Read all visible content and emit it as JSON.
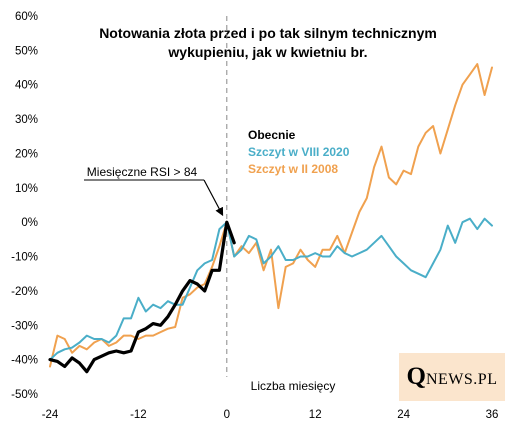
{
  "chart_data": {
    "type": "line",
    "title_lines": [
      "Notowania złota przed i po tak silnym technicznym",
      "wykupieniu, jak w kwietniu br."
    ],
    "xlabel": "Liczba miesięcy",
    "ylabel": "",
    "xlim": [
      -24,
      36
    ],
    "ylim": [
      -50,
      60
    ],
    "x_ticks": [
      -24,
      -12,
      0,
      12,
      24,
      36
    ],
    "y_ticks": [
      -50,
      -40,
      -30,
      -20,
      -10,
      0,
      10,
      20,
      30,
      40,
      50,
      60
    ],
    "y_tick_labels": [
      "-50%",
      "-40%",
      "-30%",
      "-20%",
      "-10%",
      "0%",
      "10%",
      "20%",
      "30%",
      "40%",
      "50%",
      "60%"
    ],
    "grid": false,
    "legend_position": "middle",
    "annotation": {
      "text": "Miesięczne RSI > 84",
      "x": 0,
      "y": 0
    },
    "vline_x": 0,
    "series": [
      {
        "name": "Obecnie",
        "color": "#000000",
        "x": [
          -24,
          -23,
          -22,
          -21,
          -20,
          -19,
          -18,
          -17,
          -16,
          -15,
          -14,
          -13,
          -12,
          -11,
          -10,
          -9,
          -8,
          -7,
          -6,
          -5,
          -4,
          -3,
          -2,
          -1,
          0,
          1
        ],
        "y": [
          -40,
          -40.5,
          -42,
          -39.5,
          -41,
          -43.5,
          -40,
          -39,
          -38,
          -37.5,
          -38,
          -37.5,
          -32,
          -31,
          -29.5,
          -30,
          -27.5,
          -24,
          -20,
          -17,
          -18,
          -20,
          -14,
          -14,
          0,
          -6
        ]
      },
      {
        "name": "Szczyt w VIII 2020",
        "color": "#4aaec8",
        "x": [
          -24,
          -23,
          -22,
          -21,
          -20,
          -19,
          -18,
          -17,
          -16,
          -15,
          -14,
          -13,
          -12,
          -11,
          -10,
          -9,
          -8,
          -7,
          -6,
          -5,
          -4,
          -3,
          -2,
          -1,
          0,
          1,
          2,
          3,
          4,
          5,
          6,
          7,
          8,
          9,
          10,
          11,
          12,
          13,
          14,
          15,
          16,
          17,
          18,
          19,
          20,
          21,
          22,
          23,
          24,
          25,
          26,
          27,
          28,
          29,
          30,
          31,
          32,
          33,
          34,
          35,
          36
        ],
        "y": [
          -40,
          -38,
          -37,
          -36.5,
          -35,
          -33,
          -34,
          -34,
          -35,
          -33,
          -28,
          -28,
          -22,
          -26,
          -24,
          -25,
          -23,
          -24,
          -24,
          -19,
          -14,
          -12,
          -11,
          -2,
          0,
          -10,
          -8,
          -4,
          -5,
          -12,
          -10,
          -7,
          -11,
          -11,
          -10,
          -10,
          -9,
          -10,
          -10,
          -7,
          -9,
          -10,
          -9,
          -8,
          -6,
          -4,
          -7,
          -10,
          -12,
          -14,
          -15,
          -16,
          -12,
          -8,
          -1,
          -6,
          0,
          1,
          -2,
          1,
          -1
        ]
      },
      {
        "name": "Szczyt w II 2008",
        "color": "#f0a14f",
        "x": [
          -24,
          -23,
          -22,
          -21,
          -20,
          -19,
          -18,
          -17,
          -16,
          -15,
          -14,
          -13,
          -12,
          -11,
          -10,
          -9,
          -8,
          -7,
          -6,
          -5,
          -4,
          -3,
          -2,
          -1,
          0,
          1,
          2,
          3,
          4,
          5,
          6,
          7,
          8,
          9,
          10,
          11,
          12,
          13,
          14,
          15,
          16,
          17,
          18,
          19,
          20,
          21,
          22,
          23,
          24,
          25,
          26,
          27,
          28,
          29,
          30,
          31,
          32,
          33,
          34,
          35,
          36
        ],
        "y": [
          -42,
          -33,
          -34,
          -38,
          -36,
          -37,
          -35,
          -34,
          -36,
          -35,
          -33,
          -33,
          -34,
          -33,
          -33,
          -32,
          -31,
          -30.5,
          -22,
          -21,
          -19,
          -18,
          -13,
          -7,
          0,
          -10,
          -7,
          -9,
          -6,
          -14,
          -8,
          -25,
          -13,
          -12,
          -8,
          -11,
          -13,
          -8,
          -8,
          -4,
          -9,
          -3,
          3,
          7,
          16,
          22,
          13,
          11,
          15,
          14,
          22,
          26,
          28,
          20,
          27,
          34,
          40,
          43,
          46,
          37,
          45
        ]
      }
    ]
  },
  "logo": {
    "q": "Q",
    "rest": "NEWS.PL"
  }
}
